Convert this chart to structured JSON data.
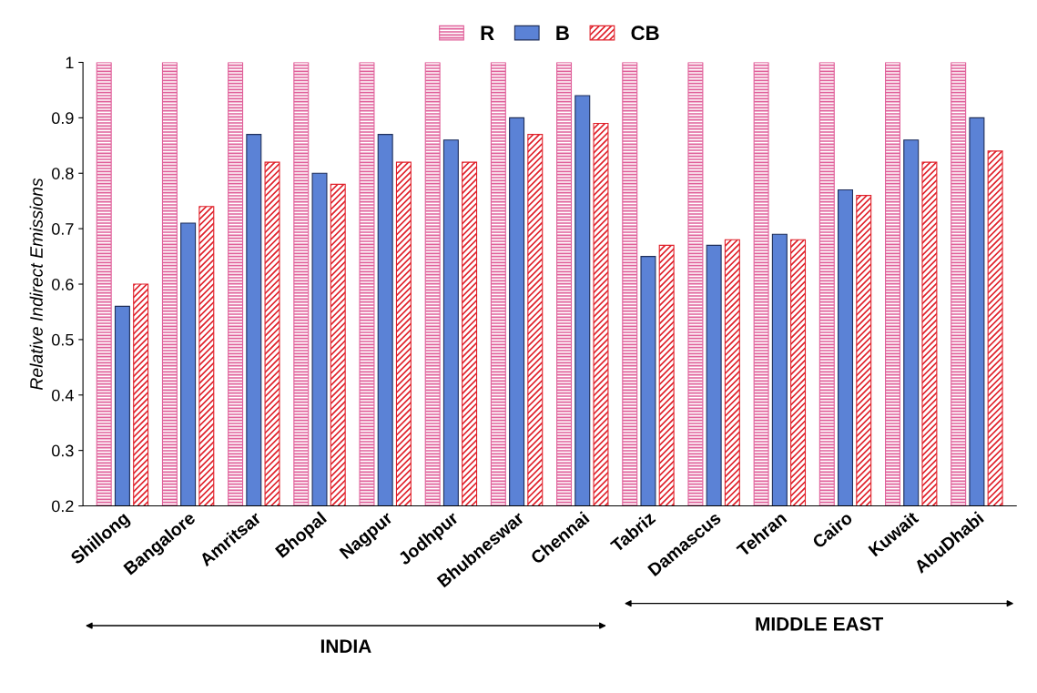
{
  "chart_data": {
    "type": "bar",
    "ylabel": "Relative Indirect Emissions",
    "categories": [
      "Shillong",
      "Bangalore",
      "Amritsar",
      "Bhopal",
      "Nagpur",
      "Jodhpur",
      "Bhubneswar",
      "Chennai",
      "Tabriz",
      "Damascus",
      "Tehran",
      "Cairo",
      "Kuwait",
      "AbuDhabi"
    ],
    "series": [
      {
        "name": "R",
        "color": "#e0609a",
        "values": [
          1,
          1,
          1,
          1,
          1,
          1,
          1,
          1,
          1,
          1,
          1,
          1,
          1,
          1
        ]
      },
      {
        "name": "B",
        "color": "#5b82d6",
        "values": [
          0.56,
          0.71,
          0.87,
          0.8,
          0.87,
          0.86,
          0.9,
          0.94,
          0.65,
          0.67,
          0.69,
          0.77,
          0.86,
          0.9
        ]
      },
      {
        "name": "CB",
        "color": "#e0202a",
        "values": [
          0.6,
          0.74,
          0.82,
          0.78,
          0.82,
          0.82,
          0.87,
          0.89,
          0.67,
          0.68,
          0.68,
          0.76,
          0.82,
          0.84
        ]
      }
    ],
    "ylim": [
      0.2,
      1
    ],
    "yticks": [
      0.2,
      0.3,
      0.4,
      0.5,
      0.6,
      0.7,
      0.8,
      0.9,
      1
    ],
    "grid": false,
    "legend": "top",
    "annotations": [
      "INDIA",
      "MIDDLE EAST"
    ]
  }
}
